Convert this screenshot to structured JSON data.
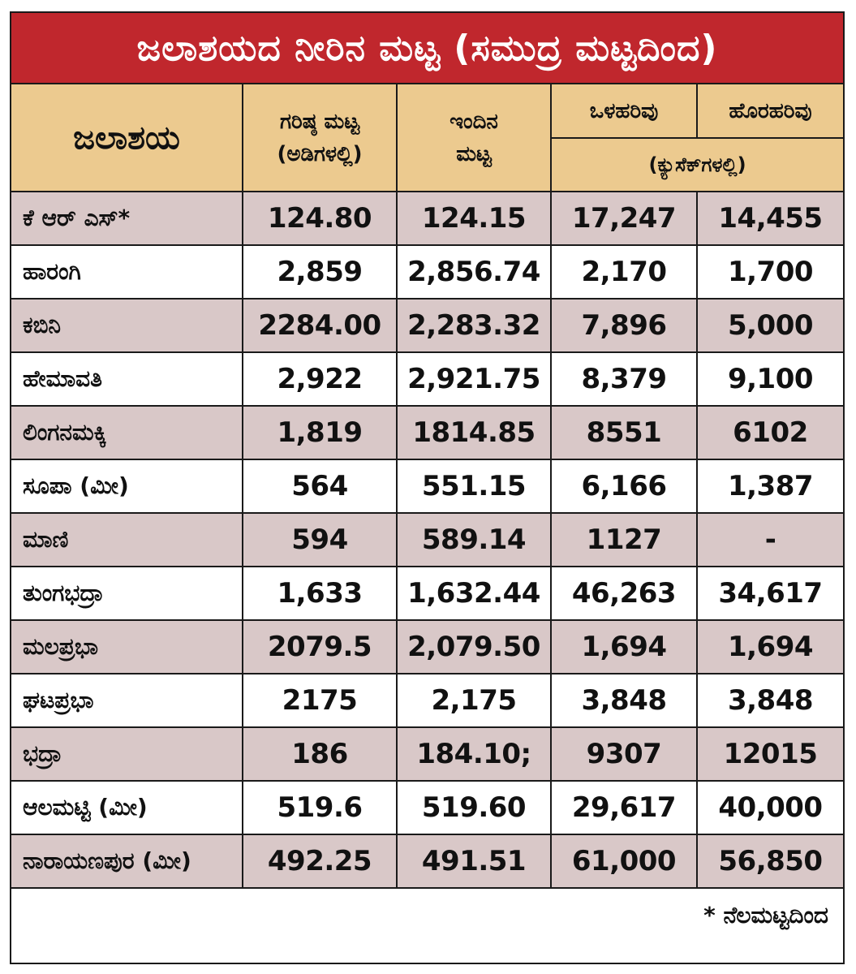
{
  "title": "ಜಲಾಶಯದ ನೀರಿನ ಮಟ್ಟ (ಸಮುದ್ರ ಮಟ್ಟದಿಂದ)",
  "headers": {
    "reservoir": "ಜಲಾಶಯ",
    "max_level_line1": "ಗರಿಷ್ಠ ಮಟ್ಟ",
    "max_level_line2": "(ಅಡಿಗಳಲ್ಲಿ)",
    "today_level_line1": "ಇಂದಿನ",
    "today_level_line2": "ಮಟ್ಟ",
    "inflow": "ಒಳಹರಿವು",
    "outflow": "ಹೊರಹರಿವು",
    "flow_units": "(ಕ್ಯುಸೆಕ್‌ಗಳಲ್ಲಿ)"
  },
  "rows": [
    [
      "ಕೆ ಆರ್ ಎಸ್*",
      "124.80",
      "124.15",
      "17,247",
      "14,455"
    ],
    [
      "ಹಾರಂಗಿ",
      "2,859",
      "2,856.74",
      "2,170",
      "1,700"
    ],
    [
      "ಕಬಿನಿ",
      "2284.00",
      "2,283.32",
      "7,896",
      "5,000"
    ],
    [
      "ಹೇಮಾವತಿ",
      "2,922",
      "2,921.75",
      "8,379",
      "9,100"
    ],
    [
      "ಲಿಂಗನಮಕ್ಕಿ",
      "1,819",
      "1814.85",
      "8551",
      "6102"
    ],
    [
      "ಸೂಪಾ (ಮೀ)",
      "564",
      "551.15",
      "6,166",
      "1,387"
    ],
    [
      "ಮಾಣಿ",
      "594",
      "589.14",
      "1127",
      "-"
    ],
    [
      "ತುಂಗಭದ್ರಾ",
      "1,633",
      "1,632.44",
      "46,263",
      "34,617"
    ],
    [
      "ಮಲಪ್ರಭಾ",
      "2079.5",
      "2,079.50",
      "1,694",
      "1,694"
    ],
    [
      "ಘಟಪ್ರಭಾ",
      "2175",
      "2,175",
      "3,848",
      "3,848"
    ],
    [
      "ಭದ್ರಾ",
      "186",
      "184.10;",
      "9307",
      "12015"
    ],
    [
      "ಆಲಮಟ್ಟಿ (ಮೀ)",
      "519.6",
      "519.60",
      "29,617",
      "40,000"
    ],
    [
      "ನಾರಾಯಣಪುರ (ಮೀ)",
      "492.25",
      "491.51",
      "61,000",
      "56,850"
    ]
  ],
  "footnote": "* ನೆಲಮಟ್ಟದಿಂದ",
  "colors": {
    "title_bg": "#c0272d",
    "header_bg": "#ecca8f",
    "row_shaded": "#d9c8c8",
    "row_plain": "#ffffff"
  }
}
